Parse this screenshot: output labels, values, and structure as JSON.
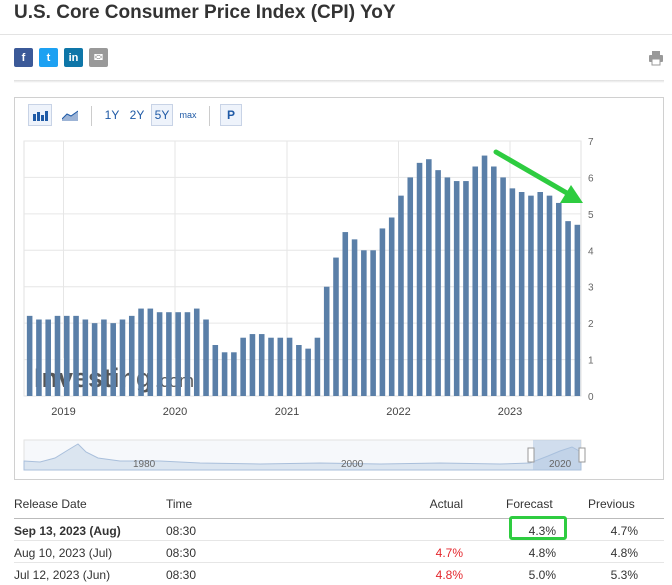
{
  "page_title": "U.S. Core Consumer Price Index (CPI) YoY",
  "share": {
    "facebook": {
      "label": "f",
      "color": "#3b5998",
      "icon": "facebook-icon"
    },
    "twitter": {
      "label": "t",
      "color": "#1da1f2",
      "icon": "twitter-icon"
    },
    "linkedin": {
      "label": "in",
      "color": "#0e76a8",
      "icon": "linkedin-icon"
    },
    "email": {
      "label": "✉",
      "color": "#999999",
      "icon": "email-icon"
    }
  },
  "toolbar": {
    "ranges": [
      "1Y",
      "2Y",
      "5Y",
      "max"
    ],
    "selected_range": "5Y",
    "p_label": "P"
  },
  "chart_data": {
    "type": "bar",
    "title": "",
    "x_tick_labels": [
      "2019",
      "2020",
      "2021",
      "2022",
      "2023"
    ],
    "y_ticks": [
      0,
      1,
      2,
      3,
      4,
      5,
      6,
      7
    ],
    "ylim": [
      0,
      7
    ],
    "grid": true,
    "y_axis_side": "right",
    "bar_color": "#5a7fa8",
    "watermark": "Investing.com",
    "annotation": "green arrow pointing at latest value",
    "values": [
      2.2,
      2.1,
      2.1,
      2.2,
      2.2,
      2.2,
      2.1,
      2.0,
      2.1,
      2.0,
      2.1,
      2.2,
      2.4,
      2.4,
      2.3,
      2.3,
      2.3,
      2.3,
      2.4,
      2.1,
      1.4,
      1.2,
      1.2,
      1.6,
      1.7,
      1.7,
      1.6,
      1.6,
      1.6,
      1.4,
      1.3,
      1.6,
      3.0,
      3.8,
      4.5,
      4.3,
      4.0,
      4.0,
      4.6,
      4.9,
      5.5,
      6.0,
      6.4,
      6.5,
      6.2,
      6.0,
      5.9,
      5.9,
      6.3,
      6.6,
      6.3,
      6.0,
      5.7,
      5.6,
      5.5,
      5.6,
      5.5,
      5.3,
      4.8,
      4.7
    ]
  },
  "navigator": {
    "labels": [
      "1980",
      "2000",
      "2020"
    ]
  },
  "table": {
    "headers": {
      "release_date": "Release Date",
      "time": "Time",
      "actual": "Actual",
      "forecast": "Forecast",
      "previous": "Previous"
    },
    "rows": [
      {
        "date": "Sep 13, 2023 (Aug)",
        "time": "08:30",
        "actual": "",
        "forecast": "4.3%",
        "previous": "4.7%"
      },
      {
        "date": "Aug 10, 2023 (Jul)",
        "time": "08:30",
        "actual": "4.7%",
        "forecast": "4.8%",
        "previous": "4.8%"
      },
      {
        "date": "Jul 12, 2023 (Jun)",
        "time": "08:30",
        "actual": "4.8%",
        "forecast": "5.0%",
        "previous": "5.3%"
      }
    ],
    "highlight_color": "#2ecc40",
    "negative_color": "#e4262c"
  }
}
